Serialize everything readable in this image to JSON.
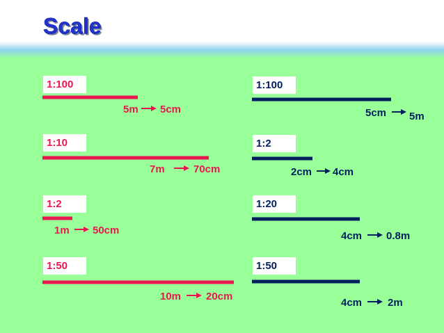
{
  "header": {
    "title": "Scale"
  },
  "left": [
    {
      "ratio": "1:100",
      "from": "5m",
      "to": "5cm"
    },
    {
      "ratio": "1:10",
      "from": "7m",
      "to": "70cm"
    },
    {
      "ratio": "1:2",
      "from": "1m",
      "to": "50cm"
    },
    {
      "ratio": "1:50",
      "from": "10m",
      "to": "20cm"
    }
  ],
  "right": [
    {
      "ratio": "1:100",
      "from": "5cm",
      "to": "5m"
    },
    {
      "ratio": "1:2",
      "from": "2cm",
      "to": "4cm"
    },
    {
      "ratio": "1:20",
      "from": "4cm",
      "to": "0.8m"
    },
    {
      "ratio": "1:50",
      "from": "4cm",
      "to": "2m"
    }
  ]
}
